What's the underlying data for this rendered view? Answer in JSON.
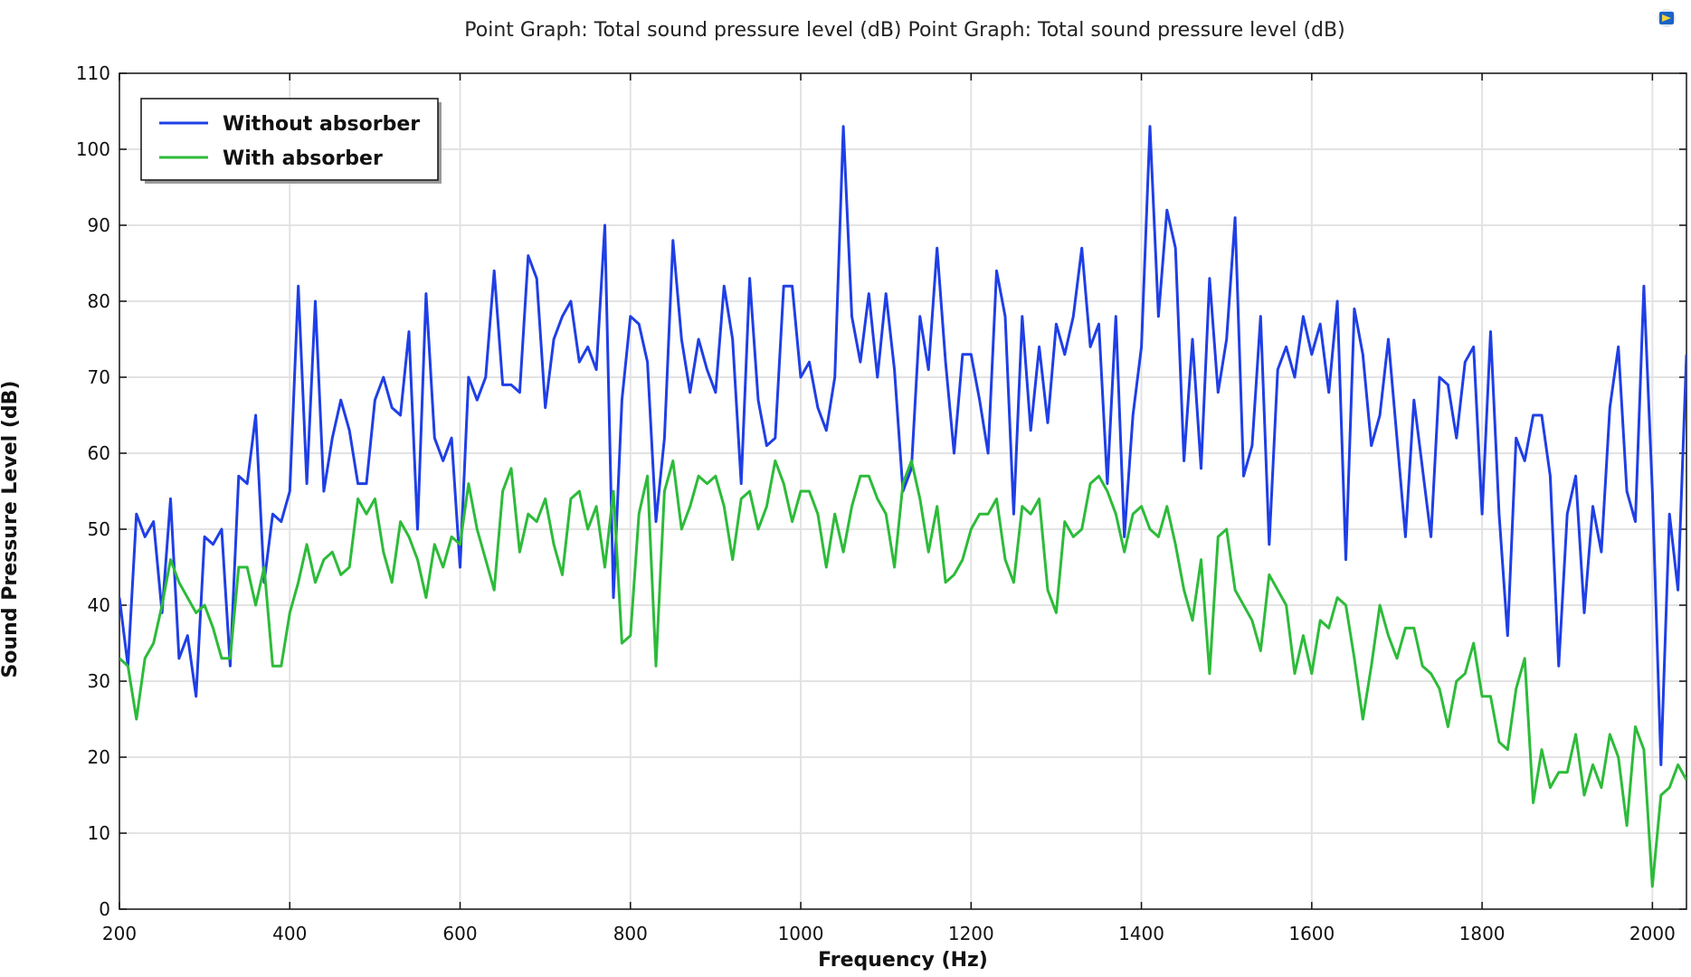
{
  "chart_data": {
    "type": "line",
    "title": "Point Graph: Total sound pressure level (dB)  Point Graph: Total sound pressure level (dB)",
    "xlabel": "Frequency (Hz)",
    "ylabel": "Sound Pressure Level (dB)",
    "xlim": [
      200,
      2040
    ],
    "ylim": [
      0,
      110
    ],
    "xticks": [
      200,
      400,
      600,
      800,
      1000,
      1200,
      1400,
      1600,
      1800,
      2000
    ],
    "yticks": [
      0,
      10,
      20,
      30,
      40,
      50,
      60,
      70,
      80,
      90,
      100,
      110
    ],
    "grid": true,
    "legend_position": "top-left",
    "x": [
      200,
      210,
      220,
      230,
      240,
      250,
      260,
      270,
      280,
      290,
      300,
      310,
      320,
      330,
      340,
      350,
      360,
      370,
      380,
      390,
      400,
      410,
      420,
      430,
      440,
      450,
      460,
      470,
      480,
      490,
      500,
      510,
      520,
      530,
      540,
      550,
      560,
      570,
      580,
      590,
      600,
      610,
      620,
      630,
      640,
      650,
      660,
      670,
      680,
      690,
      700,
      710,
      720,
      730,
      740,
      750,
      760,
      770,
      780,
      790,
      800,
      810,
      820,
      830,
      840,
      850,
      860,
      870,
      880,
      890,
      900,
      910,
      920,
      930,
      940,
      950,
      960,
      970,
      980,
      990,
      1000,
      1010,
      1020,
      1030,
      1040,
      1050,
      1060,
      1070,
      1080,
      1090,
      1100,
      1110,
      1120,
      1130,
      1140,
      1150,
      1160,
      1170,
      1180,
      1190,
      1200,
      1210,
      1220,
      1230,
      1240,
      1250,
      1260,
      1270,
      1280,
      1290,
      1300,
      1310,
      1320,
      1330,
      1340,
      1350,
      1360,
      1370,
      1380,
      1390,
      1400,
      1410,
      1420,
      1430,
      1440,
      1450,
      1460,
      1470,
      1480,
      1490,
      1500,
      1510,
      1520,
      1530,
      1540,
      1550,
      1560,
      1570,
      1580,
      1590,
      1600,
      1610,
      1620,
      1630,
      1640,
      1650,
      1660,
      1670,
      1680,
      1690,
      1700,
      1710,
      1720,
      1730,
      1740,
      1750,
      1760,
      1770,
      1780,
      1790,
      1800,
      1810,
      1820,
      1830,
      1840,
      1850,
      1860,
      1870,
      1880,
      1890,
      1900,
      1910,
      1920,
      1930,
      1940,
      1950,
      1960,
      1970,
      1980,
      1990,
      2000,
      2010,
      2020,
      2030,
      2040
    ],
    "series": [
      {
        "name": "Without absorber",
        "color": "#1f3fe6",
        "values": [
          41,
          32,
          52,
          49,
          51,
          39,
          54,
          33,
          36,
          28,
          49,
          48,
          50,
          32,
          57,
          56,
          65,
          43,
          52,
          51,
          55,
          82,
          56,
          80,
          55,
          62,
          67,
          63,
          56,
          56,
          67,
          70,
          66,
          65,
          76,
          50,
          81,
          62,
          59,
          62,
          45,
          70,
          67,
          70,
          84,
          69,
          69,
          68,
          86,
          83,
          66,
          75,
          78,
          80,
          72,
          74,
          71,
          90,
          41,
          67,
          78,
          77,
          72,
          51,
          62,
          88,
          75,
          68,
          75,
          71,
          68,
          82,
          75,
          56,
          83,
          67,
          61,
          62,
          82,
          82,
          70,
          72,
          66,
          63,
          70,
          103,
          78,
          72,
          81,
          70,
          81,
          71,
          55,
          58,
          78,
          71,
          87,
          72,
          60,
          73,
          73,
          67,
          60,
          84,
          78,
          52,
          78,
          63,
          74,
          64,
          77,
          73,
          78,
          87,
          74,
          77,
          56,
          78,
          49,
          65,
          74,
          103,
          78,
          92,
          87,
          59,
          75,
          58,
          83,
          68,
          75,
          91,
          57,
          61,
          78,
          48,
          71,
          74,
          70,
          78,
          73,
          77,
          68,
          80,
          46,
          79,
          73,
          61,
          65,
          75,
          62,
          49,
          67,
          58,
          49,
          70,
          69,
          62,
          72,
          74,
          52,
          76,
          52,
          36,
          62,
          59,
          65,
          65,
          57,
          32,
          52,
          57,
          39,
          53,
          47,
          66,
          74,
          55,
          51,
          82,
          55,
          19,
          52,
          42,
          73
        ]
      },
      {
        "name": "With absorber",
        "color": "#2dbb3a",
        "values": [
          33,
          32,
          25,
          33,
          35,
          40,
          46,
          43,
          41,
          39,
          40,
          37,
          33,
          33,
          45,
          45,
          40,
          45,
          32,
          32,
          39,
          43,
          48,
          43,
          46,
          47,
          44,
          45,
          54,
          52,
          54,
          47,
          43,
          51,
          49,
          46,
          41,
          48,
          45,
          49,
          48,
          56,
          50,
          46,
          42,
          55,
          58,
          47,
          52,
          51,
          54,
          48,
          44,
          54,
          55,
          50,
          53,
          45,
          55,
          35,
          36,
          52,
          57,
          32,
          55,
          59,
          50,
          53,
          57,
          56,
          57,
          53,
          46,
          54,
          55,
          50,
          53,
          59,
          56,
          51,
          55,
          55,
          52,
          45,
          52,
          47,
          53,
          57,
          57,
          54,
          52,
          45,
          56,
          59,
          54,
          47,
          53,
          43,
          44,
          46,
          50,
          52,
          52,
          54,
          46,
          43,
          53,
          52,
          54,
          42,
          39,
          51,
          49,
          50,
          56,
          57,
          55,
          52,
          47,
          52,
          53,
          50,
          49,
          53,
          48,
          42,
          38,
          46,
          31,
          49,
          50,
          42,
          40,
          38,
          34,
          44,
          42,
          40,
          31,
          36,
          31,
          38,
          37,
          41,
          40,
          33,
          25,
          32,
          40,
          36,
          33,
          37,
          37,
          32,
          31,
          29,
          24,
          30,
          31,
          35,
          28,
          28,
          22,
          21,
          29,
          33,
          14,
          21,
          16,
          18,
          18,
          23,
          15,
          19,
          16,
          23,
          20,
          11,
          24,
          21,
          3,
          15,
          16,
          19,
          17
        ]
      }
    ]
  },
  "icons": {
    "corner": "comsol-logo-icon"
  }
}
